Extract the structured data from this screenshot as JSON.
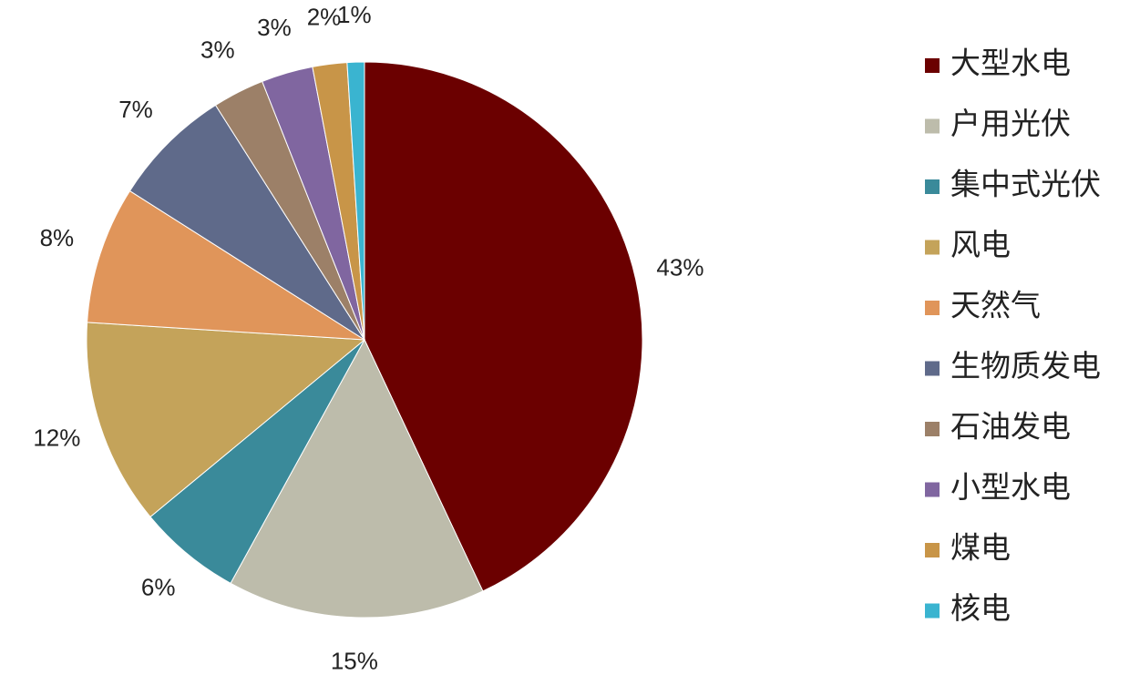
{
  "chart_data": {
    "type": "pie",
    "categories": [
      "大型水电",
      "户用光伏",
      "集中式光伏",
      "风电",
      "天然气",
      "生物质发电",
      "石油发电",
      "小型水电",
      "煤电",
      "核电"
    ],
    "values": [
      43,
      15,
      6,
      12,
      8,
      7,
      3,
      3,
      2,
      1
    ],
    "value_labels": [
      "43%",
      "15%",
      "6%",
      "12%",
      "8%",
      "7%",
      "3%",
      "3%",
      "2%",
      "1%"
    ],
    "colors": [
      "#6b0000",
      "#bdbcab",
      "#3a8a9a",
      "#c4a35a",
      "#e0955a",
      "#5f6a8a",
      "#9c8068",
      "#8066a0",
      "#c89548",
      "#3ab4d0"
    ],
    "legend": "right"
  }
}
